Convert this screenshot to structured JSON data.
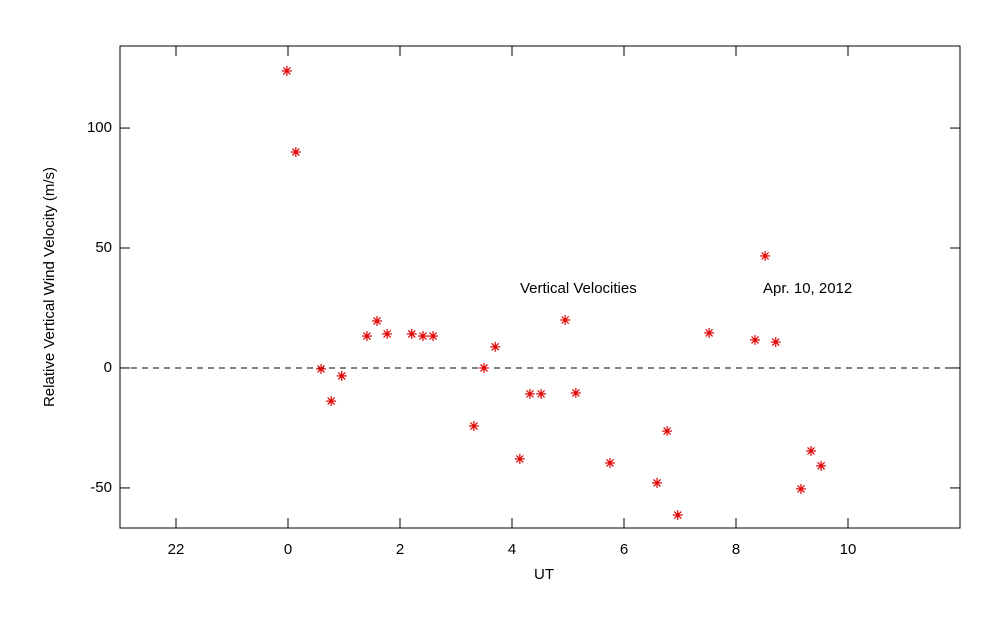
{
  "chart_data": {
    "type": "scatter",
    "x_label": "UT",
    "y_label": "Relative Vertical Wind Velocity (m/s)",
    "annotations": [
      "Vertical Velocities",
      "Apr. 10, 2012"
    ],
    "color": "#e00000",
    "marker": "asterisk",
    "reference_line": 0,
    "xlim": [
      -3,
      12
    ],
    "xticks": [
      {
        "value": -2,
        "label": "22"
      },
      0,
      2,
      4,
      6,
      8,
      10
    ],
    "ylim": [
      -66.7,
      134.2
    ],
    "yticks": [
      -50,
      0,
      50,
      100
    ],
    "x": [
      -0.02,
      0.14,
      0.59,
      0.77,
      0.96,
      1.41,
      1.59,
      1.77,
      2.21,
      2.41,
      2.59,
      3.32,
      3.5,
      3.7,
      4.14,
      4.32,
      4.52,
      4.95,
      5.14,
      5.75,
      6.59,
      6.77,
      6.96,
      7.52,
      8.34,
      8.52,
      8.71,
      9.16,
      9.34,
      9.52
    ],
    "values": [
      123.8,
      90,
      -0.4,
      -13.8,
      -3.3,
      13.3,
      19.6,
      14.2,
      14.2,
      13.3,
      13.3,
      -24.2,
      0,
      8.8,
      -37.9,
      -10.8,
      -10.8,
      20,
      -10.4,
      -39.6,
      -47.9,
      -26.3,
      -61.3,
      14.6,
      11.7,
      46.7,
      10.8,
      -50.4,
      -34.6,
      -40.8
    ]
  }
}
